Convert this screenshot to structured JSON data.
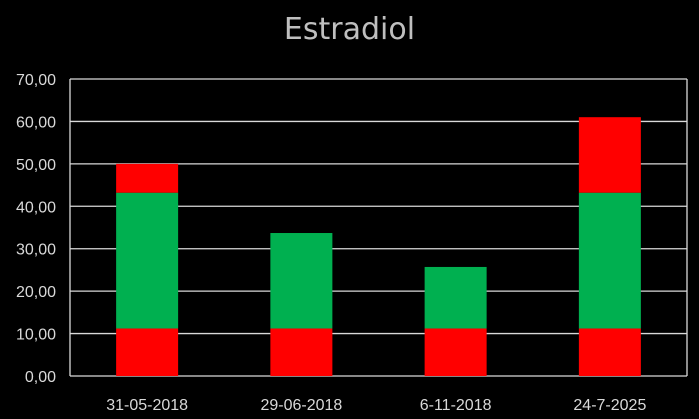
{
  "chart_data": {
    "type": "bar",
    "stacked": true,
    "title": "Estradiol",
    "xlabel": "",
    "ylabel": "",
    "categories": [
      "31-05-2018",
      "29-06-2018",
      "6-11-2018",
      "24-7-2025"
    ],
    "series": [
      {
        "color": "#ff0000",
        "values": [
          11.2,
          11.2,
          11.2,
          11.2
        ]
      },
      {
        "color": "#00b050",
        "values": [
          32.0,
          22.5,
          14.5,
          32.0
        ]
      },
      {
        "color": "#ff0000",
        "values": [
          6.8,
          0,
          0,
          17.8
        ]
      }
    ],
    "totals": [
      50.0,
      33.7,
      25.7,
      61.0
    ],
    "ylim": [
      0,
      70
    ],
    "yticks": [
      0,
      10,
      20,
      30,
      40,
      50,
      60,
      70
    ],
    "ytick_labels": [
      "0,00",
      "10,00",
      "20,00",
      "30,00",
      "40,00",
      "50,00",
      "60,00",
      "70,00"
    ],
    "grid": true,
    "legend": "none",
    "colors": {
      "background": "#000000",
      "gridline": "#d9d9d9",
      "text": "#d9d9d9",
      "title": "#bfbfbf"
    }
  }
}
